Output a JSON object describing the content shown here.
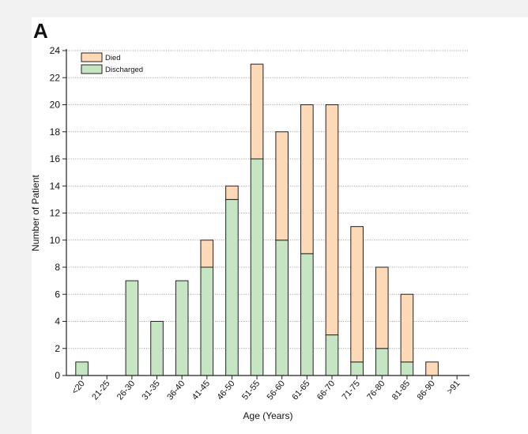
{
  "panel_label": "A",
  "chart_data": {
    "type": "bar",
    "stacked": true,
    "title": "",
    "xlabel": "Age (Years)",
    "ylabel": "Number of Patient",
    "ylim": [
      0,
      24
    ],
    "yticks": [
      0,
      2,
      4,
      6,
      8,
      10,
      12,
      14,
      16,
      18,
      20,
      22,
      24
    ],
    "grid": "horizontal dotted",
    "legend_position": "top-left",
    "categories": [
      "<20",
      "21-25",
      "26-30",
      "31-35",
      "36-40",
      "41-45",
      "46-50",
      "51-55",
      "56-60",
      "61-65",
      "66-70",
      "71-75",
      "76-80",
      "81-85",
      "86-90",
      ">91"
    ],
    "series": [
      {
        "name": "Discharged",
        "color": "#c6e6c3",
        "values": [
          1,
          0,
          7,
          4,
          7,
          8,
          13,
          16,
          10,
          9,
          3,
          1,
          2,
          1,
          0,
          0
        ]
      },
      {
        "name": "Died",
        "color": "#fdd9b7",
        "values": [
          0,
          0,
          0,
          0,
          0,
          2,
          1,
          7,
          8,
          11,
          17,
          10,
          6,
          5,
          1,
          0
        ]
      }
    ],
    "legend_order": [
      "Died",
      "Discharged"
    ]
  }
}
